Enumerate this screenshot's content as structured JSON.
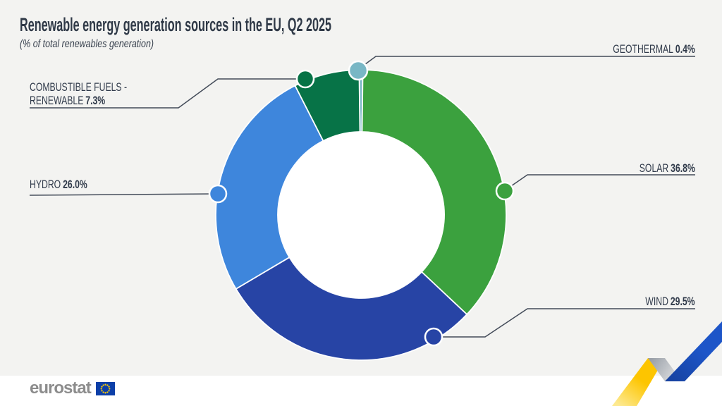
{
  "title": "Renewable energy generation sources in the EU, Q2 2025",
  "subtitle": "(% of total renewables generation)",
  "footer": {
    "logo_text": "eurostat"
  },
  "colors": {
    "background": "#f3f3f1",
    "text": "#2f3947",
    "leader_line": "#434b59",
    "donut_hole": "#ffffff"
  },
  "decoration": {
    "ribbon_yellow": "#fdc500",
    "ribbon_silver": "#c9ccd0",
    "ribbon_blue": "#1d55c8",
    "eu_flag_blue": "#0c3fa8",
    "eu_star_yellow": "#ffcc00",
    "logo_gray": "#8c8c8c"
  },
  "chart_data": {
    "type": "pie",
    "subtype": "donut",
    "title": "Renewable energy generation sources in the EU, Q2 2025",
    "units": "% of total renewables generation",
    "rotation": "geothermal slice centered at 12 o'clock, segments clockwise",
    "legend_position": "callout labels with leader lines and colored dots",
    "segments": [
      {
        "label": "GEOTHERMAL",
        "value": 0.4,
        "display": "0.4%",
        "color": "#79b7c5"
      },
      {
        "label": "SOLAR",
        "value": 36.8,
        "display": "36.8%",
        "color": "#3ba13e"
      },
      {
        "label": "WIND",
        "value": 29.5,
        "display": "29.5%",
        "color": "#2744a5"
      },
      {
        "label": "HYDRO",
        "value": 26.0,
        "display": "26.0%",
        "color": "#3e86dc"
      },
      {
        "label": "COMBUSTIBLE FUELS - RENEWABLE",
        "label_line1": "COMBUSTIBLE FUELS -",
        "label_line2": "RENEWABLE",
        "value": 7.3,
        "display": "7.3%",
        "color": "#077347"
      }
    ]
  }
}
